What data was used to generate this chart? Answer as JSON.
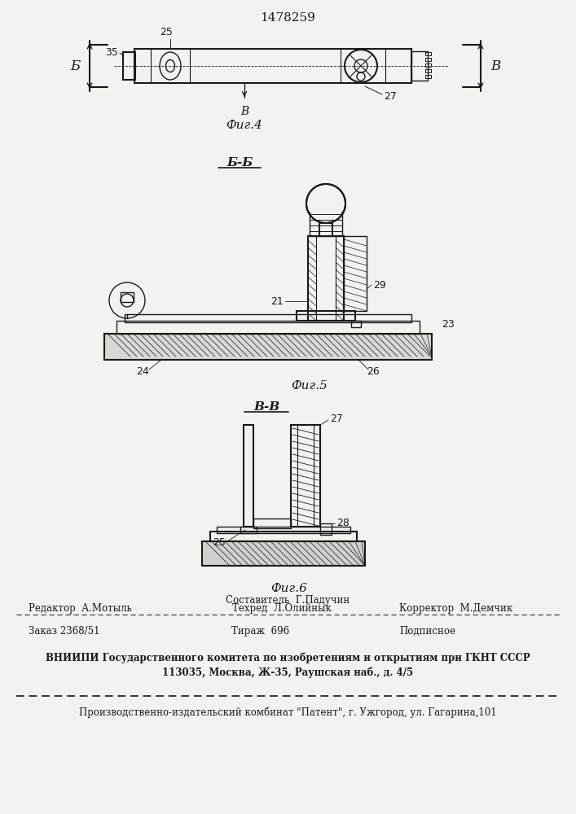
{
  "title": "1478259",
  "bg_color": "#f2f2ee",
  "line_color": "#1a1a1a",
  "fig4_label": "Фиг.4",
  "fig5_label": "Фиг.5",
  "fig6_label": "Фиг.6",
  "section_bb": "Б-Б",
  "section_vv": "В-В",
  "footer_line1": "Составитель  Г.Падучин",
  "footer_line2_left": "Редактор  А.Мотыль",
  "footer_line2_mid": "Техред  Л.Олийнык",
  "footer_line2_right": "Корректор  М.Демчик",
  "footer_line3_left": "Заказ 2368/51",
  "footer_line3_mid": "Тираж  696",
  "footer_line3_right": "Подписное",
  "footer_line4": "ВНИИПИ Государственного комитета по изобретениям и открытиям при ГКНТ СССР",
  "footer_line5": "113035, Москва, Ж-35, Раушская наб., д. 4/5",
  "footer_line6": "Производственно-издательский комбинат \"Патент\", г. Ужгород, ул. Гагарина,101"
}
